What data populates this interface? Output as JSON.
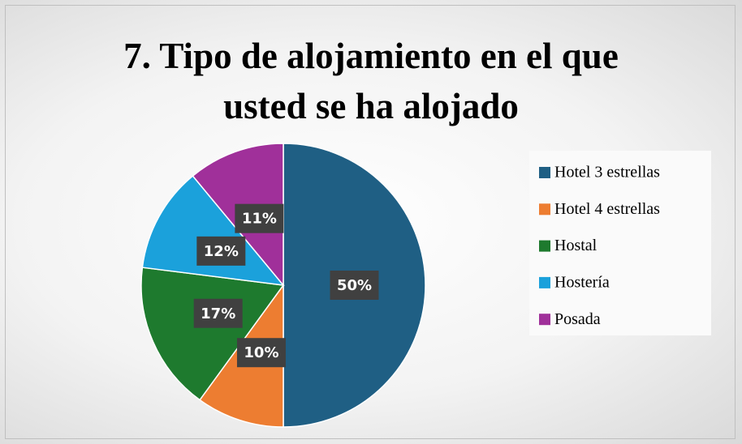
{
  "chart_data": {
    "type": "pie",
    "title": "7. Tipo de alojamiento en el que usted se ha alojado",
    "categories": [
      "Hotel 3 estrellas",
      "Hotel 4 estrellas",
      "Hostal",
      "Hostería",
      "Posada"
    ],
    "values": [
      50,
      10,
      17,
      12,
      11
    ],
    "value_labels": [
      "50%",
      "10%",
      "17%",
      "12%",
      "11%"
    ],
    "colors": [
      "#1f5f84",
      "#ed7d31",
      "#1e7a2e",
      "#1ba1db",
      "#a0309a"
    ],
    "legend": "right"
  }
}
